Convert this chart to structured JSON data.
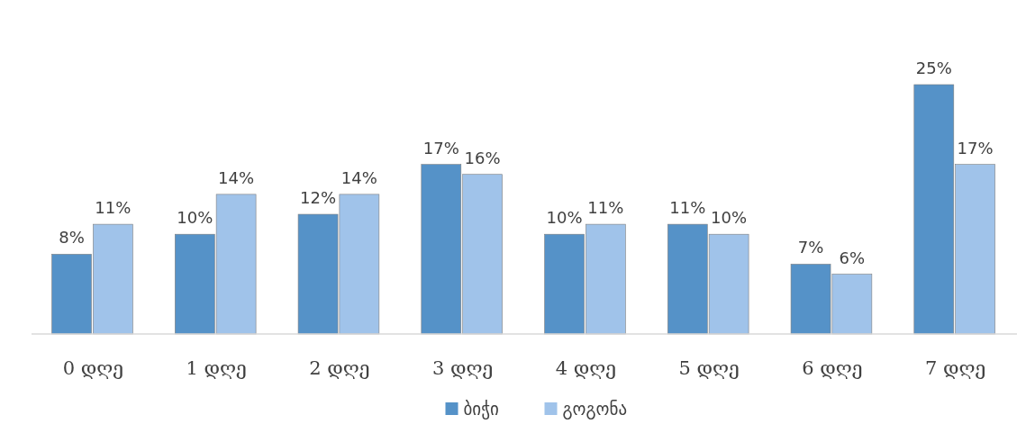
{
  "chart_data": {
    "type": "bar",
    "categories": [
      "0 დღე",
      "1 დღე",
      "2 დღე",
      "3 დღე",
      "4 დღე",
      "5 დღე",
      "6 დღე",
      "7 დღე"
    ],
    "series": [
      {
        "name": "ბიჭი",
        "color": "#5592c8",
        "values": [
          8,
          10,
          12,
          17,
          10,
          11,
          7,
          25
        ],
        "value_labels": [
          "8%",
          "10%",
          "12%",
          "17%",
          "10%",
          "11%",
          "7%",
          "25%"
        ]
      },
      {
        "name": "გოგონა",
        "color": "#a0c3ea",
        "values": [
          11,
          14,
          14,
          16,
          11,
          10,
          6,
          17
        ],
        "value_labels": [
          "11%",
          "14%",
          "14%",
          "16%",
          "11%",
          "10%",
          "6%",
          "17%"
        ]
      }
    ],
    "legend": "bottom"
  }
}
